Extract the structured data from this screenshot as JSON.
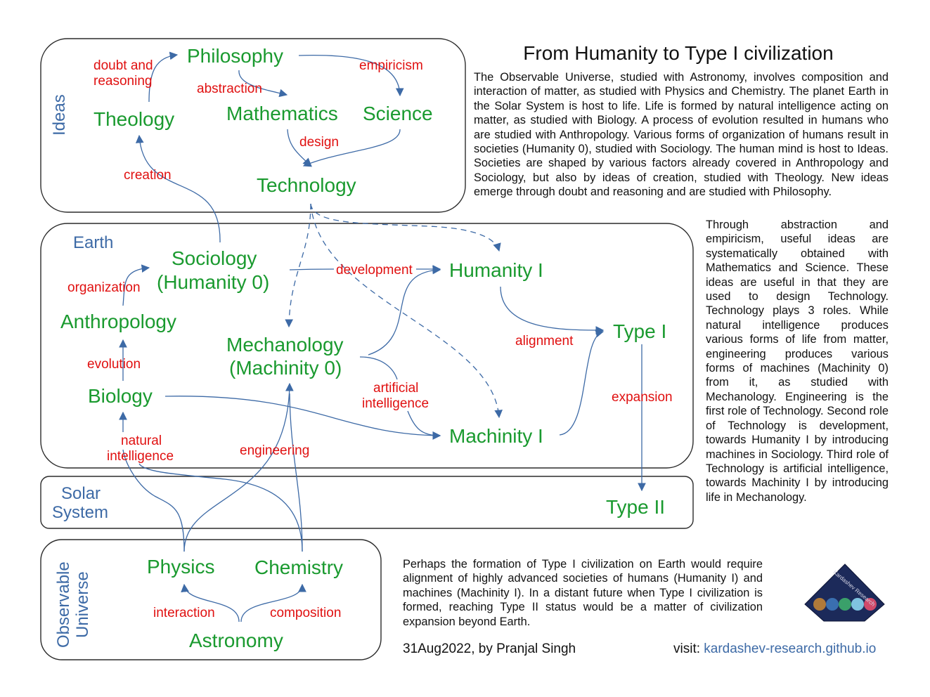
{
  "title": "From Humanity to Type I civilization",
  "regions": {
    "ideas": "Ideas",
    "earth": "Earth",
    "solar_1": "Solar",
    "solar_2": "System",
    "universe_1": "Observable",
    "universe_2": "Universe"
  },
  "nodes": {
    "philosophy": "Philosophy",
    "theology": "Theology",
    "mathematics": "Mathematics",
    "science": "Science",
    "technology": "Technology",
    "sociology_1": "Sociology",
    "sociology_2": "(Humanity 0)",
    "anthropology": "Anthropology",
    "biology": "Biology",
    "mechanology_1": "Mechanology",
    "mechanology_2": "(Machinity 0)",
    "humanity1": "Humanity I",
    "machinity1": "Machinity I",
    "type1": "Type I",
    "type2": "Type II",
    "physics": "Physics",
    "chemistry": "Chemistry",
    "astronomy": "Astronomy"
  },
  "relations": {
    "doubt_1": "doubt and",
    "doubt_2": "reasoning",
    "empiricism": "empiricism",
    "abstraction": "abstraction",
    "design": "design",
    "creation": "creation",
    "organization": "organization",
    "evolution": "evolution",
    "natural_1": "natural",
    "natural_2": "intelligence",
    "development": "development",
    "alignment": "alignment",
    "artificial_1": "artificial",
    "artificial_2": "intelligence",
    "expansion": "expansion",
    "engineering": "engineering",
    "interaction": "interaction",
    "composition": "composition"
  },
  "paragraphs": {
    "p1": "The Observable Universe, studied with Astronomy, involves composition and interaction of matter, as studied with Physics and Chemistry. The planet Earth in the Solar System is host to life. Life is formed by natural intelligence acting on matter, as studied with Biology. A process of evolution resulted in humans who are studied with Anthropology. Various forms of organization of humans result in societies (Humanity 0), studied with Sociology. The human mind is host to Ideas. Societies are shaped by various factors already covered in Anthropology and Sociology, but also by ideas of creation, studied with Theology. New ideas emerge through doubt and reasoning and are studied with Philosophy.",
    "p2": "Through abstraction and empiricism, useful ideas are systematically obtained with Mathematics and Science. These ideas are useful in that they are used to design Technology. Technology plays 3 roles. While natural intelligence produces various forms of life from matter, engineering produces various forms of machines (Machinity 0) from it, as studied with Mechanology. Engineering is the first role of Technology. Second role of Technology is development, towards Humanity I by introducing machines in Sociology. Third role of Technology is artificial intelligence, towards Machinity I by introducing life in Mechanology.",
    "p3": "Perhaps the formation of Type I civilization on Earth would require alignment of highly advanced societies of humans (Humanity I) and machines (Machinity I). In a distant future when Type I civilization is formed, reaching Type II status would be a matter of civilization expansion beyond Earth."
  },
  "logo": {
    "text": "Kardashev Research"
  },
  "footer": {
    "date_author": "31Aug2022, by Pranjal Singh",
    "visit_label": "visit: ",
    "link": "kardashev-research.github.io"
  },
  "colors": {
    "node": "#1a9a2f",
    "relation": "#e01010",
    "edge": "#3d6aa6",
    "region": "#3d6aa6"
  }
}
